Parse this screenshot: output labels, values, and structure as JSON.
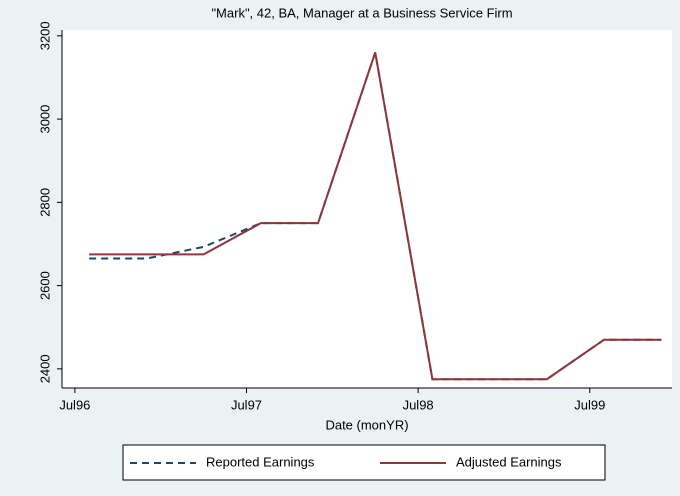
{
  "chart_data": {
    "type": "line",
    "title": "\"Mark\", 42, BA, Manager at a Business Service Firm",
    "x_label": "Date (monYR)",
    "series": [
      {
        "name": "Reported Earnings",
        "color": "#1a476f",
        "dash": true,
        "x": [
          439,
          443,
          447,
          451,
          455,
          459,
          463,
          471,
          475,
          479
        ],
        "values": [
          2665,
          2665,
          2693,
          2750,
          2750,
          3160,
          2375,
          2375,
          2470,
          2470
        ]
      },
      {
        "name": "Adjusted Earnings",
        "color": "#90353b",
        "dash": false,
        "x": [
          439,
          447,
          451,
          455,
          459,
          463,
          471,
          475,
          479
        ],
        "values": [
          2675,
          2675,
          2750,
          2750,
          3160,
          2375,
          2375,
          2470,
          2470
        ]
      }
    ],
    "xlim": [
      437.1,
      479.75
    ],
    "xticks": [
      {
        "value": 438,
        "label": "Jul96"
      },
      {
        "value": 450,
        "label": "Jul97"
      },
      {
        "value": 462,
        "label": "Jul98"
      },
      {
        "value": 474,
        "label": "Jul99"
      }
    ],
    "ylim": [
      2354,
      3214
    ],
    "yticks": [
      2400,
      2600,
      2800,
      3000,
      3200
    ],
    "legend": "bottom"
  }
}
